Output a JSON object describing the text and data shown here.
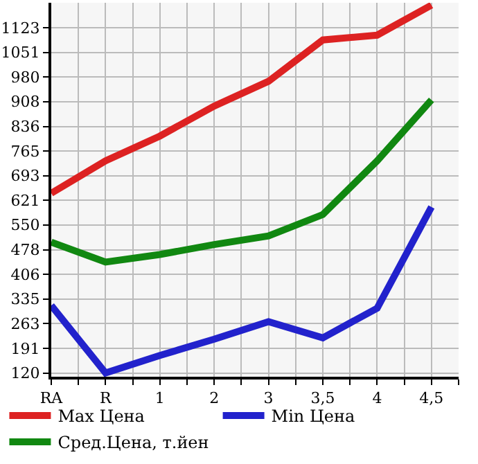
{
  "chart_data": {
    "type": "line",
    "categories": [
      "RA",
      "R",
      "1",
      "2",
      "3",
      "3,5",
      "4",
      "4,5"
    ],
    "series": [
      {
        "name": "Max Цена",
        "color": "#dd2222",
        "values": [
          642,
          736,
          808,
          895,
          967,
          1087,
          1101,
          1188
        ]
      },
      {
        "name": "Min Цена",
        "color": "#2222cc",
        "values": [
          316,
          120,
          171,
          218,
          269,
          222,
          308,
          602
        ]
      },
      {
        "name": "Сред.Цена, т.йен",
        "color": "#118811",
        "values": [
          500,
          442,
          464,
          493,
          518,
          580,
          736,
          913
        ]
      }
    ],
    "ylim": [
      109,
      1195
    ],
    "yticks": [
      120,
      191,
      263,
      335,
      406,
      478,
      550,
      621,
      693,
      765,
      836,
      908,
      980,
      1051,
      1123
    ],
    "grid": true,
    "legend": "bottom",
    "marker": "none",
    "line_style": "solid"
  }
}
